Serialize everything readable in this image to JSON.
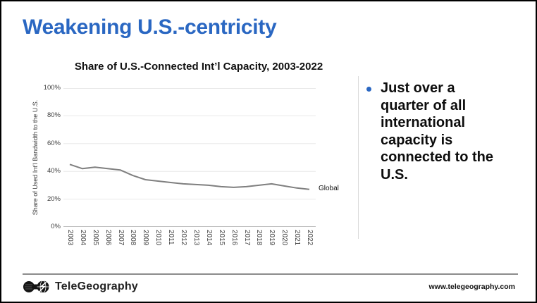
{
  "slide": {
    "title": "Weakening U.S.-centricity",
    "bullet_text": "Just over a quarter of all international capacity is connected to the U.S.",
    "footer": {
      "logo_text": "TeleGeography",
      "website": "www.telegeography.com"
    }
  },
  "colors": {
    "title_blue": "#2a67c2",
    "bullet_blue": "#2a67c2",
    "line_gray": "#7f7f7f",
    "gridline": "#e8e8e8",
    "axis_line": "#bfbfbf",
    "axis_text": "#3f3f3f",
    "divider": "#d9d9d9",
    "footer_rule": "#8c8c8c"
  },
  "chart_data": {
    "type": "line",
    "title": "Share of U.S.-Connected Int’l Capacity, 2003-2022",
    "xlabel": "",
    "ylabel": "Share of Used Int’l Bandwidth to the U.S.",
    "categories": [
      "2003",
      "2004",
      "2005",
      "2006",
      "2007",
      "2008",
      "2009",
      "2010",
      "2011",
      "2012",
      "2013",
      "2014",
      "2015",
      "2016",
      "2017",
      "2018",
      "2019",
      "2020",
      "2021",
      "2022"
    ],
    "series": [
      {
        "name": "Global",
        "values": [
          45,
          42,
          43,
          42,
          41,
          37,
          34,
          33,
          32,
          31,
          30.5,
          30,
          29,
          28.5,
          29,
          30,
          31,
          29.5,
          28,
          27
        ]
      }
    ],
    "y_ticks": [
      "0%",
      "20%",
      "40%",
      "60%",
      "80%",
      "100%"
    ],
    "ylim": [
      0,
      100
    ],
    "grid": true,
    "legend_position": "right-of-line-end"
  }
}
